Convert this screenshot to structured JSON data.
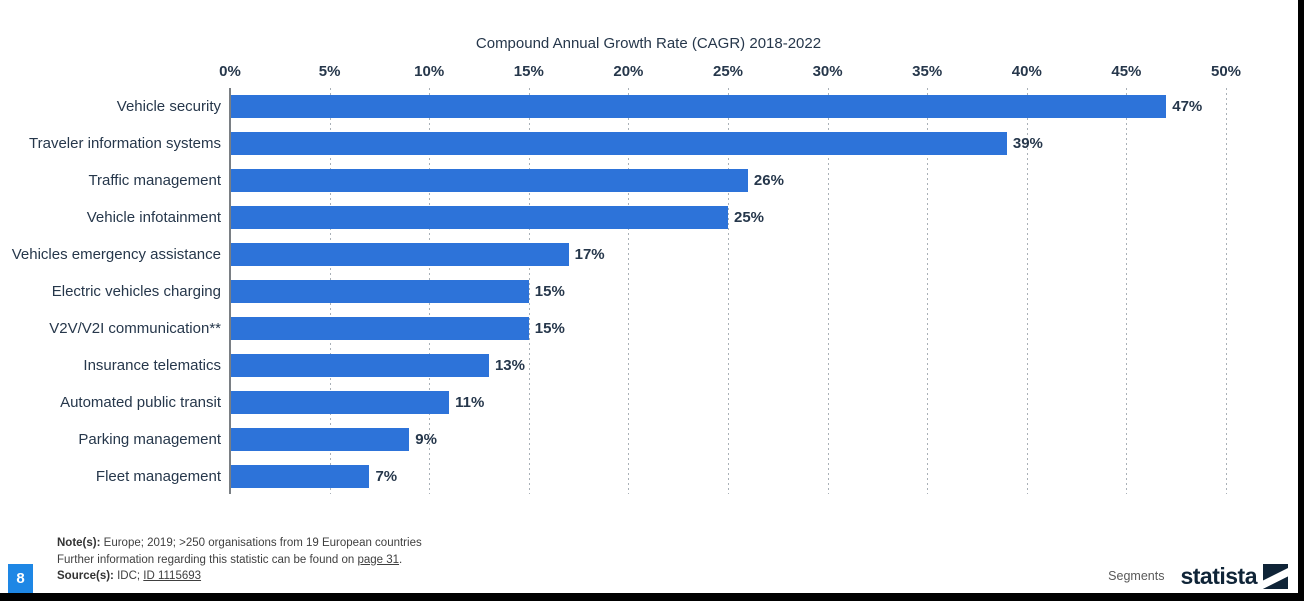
{
  "page": {
    "page_number": "8",
    "footer_right_label": "Segments",
    "brand": "statista"
  },
  "notes": {
    "note_label": "Note(s):",
    "note_text": "Europe; 2019; >250 organisations from 19 European countries",
    "further_prefix": "Further information regarding this statistic can be found on",
    "further_link": "page 31",
    "further_suffix": ".",
    "source_label": "Source(s):",
    "source_text": "IDC;",
    "source_link": "ID 1115693"
  },
  "chart_data": {
    "type": "bar",
    "orientation": "horizontal",
    "title": "Compound Annual Growth Rate (CAGR) 2018-2022",
    "categories": [
      "Vehicle security",
      "Traveler information systems",
      "Traffic management",
      "Vehicle infotainment",
      "Vehicles emergency assistance",
      "Electric vehicles charging",
      "V2V/V2I communication**",
      "Insurance telematics",
      "Automated public transit",
      "Parking management",
      "Fleet management"
    ],
    "values": [
      47,
      39,
      26,
      25,
      17,
      15,
      15,
      13,
      11,
      9,
      7
    ],
    "value_labels": [
      "47%",
      "39%",
      "26%",
      "25%",
      "17%",
      "15%",
      "15%",
      "13%",
      "11%",
      "9%",
      "7%"
    ],
    "x_ticks": [
      "0%",
      "5%",
      "10%",
      "15%",
      "20%",
      "25%",
      "30%",
      "35%",
      "40%",
      "45%",
      "50%"
    ],
    "xlim": [
      0,
      50
    ],
    "grid": "vertical-dotted",
    "legend": "none",
    "bar_color": "#2d73d9",
    "axis_color": "#7a7f84",
    "text_color": "#26374b"
  }
}
